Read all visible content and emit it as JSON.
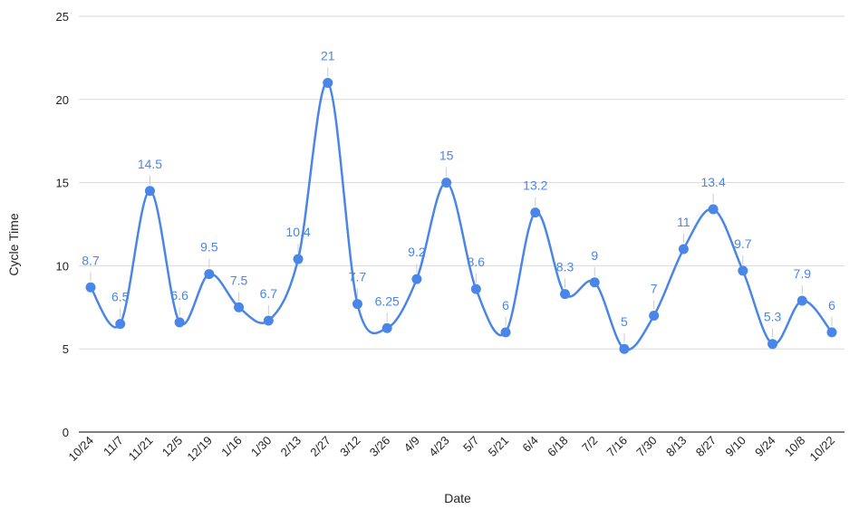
{
  "chart_data": {
    "type": "line",
    "smooth": true,
    "xlabel": "Date",
    "ylabel": "Cycle Time",
    "ylim": [
      0,
      25
    ],
    "yticks": [
      "0",
      "5",
      "10",
      "15",
      "20",
      "25"
    ],
    "grid": true,
    "legend": "none",
    "line_color": "#4a86e8",
    "label_color": "#4a86e8",
    "categories": [
      "10/24",
      "11/7",
      "11/21",
      "12/5",
      "12/19",
      "1/16",
      "1/30",
      "2/13",
      "2/27",
      "3/12",
      "3/26",
      "4/9",
      "4/23",
      "5/7",
      "5/21",
      "6/4",
      "6/18",
      "7/2",
      "7/16",
      "7/30",
      "8/13",
      "8/27",
      "9/10",
      "9/24",
      "10/8",
      "10/22"
    ],
    "series": [
      {
        "values": [
          8.7,
          6.5,
          14.5,
          6.6,
          9.5,
          7.5,
          6.7,
          10.4,
          21,
          7.7,
          6.25,
          9.2,
          15,
          8.6,
          6,
          13.2,
          8.3,
          9,
          5,
          7,
          11,
          13.4,
          9.7,
          5.3,
          7.9,
          6
        ],
        "labels": [
          "8.7",
          "6.5",
          "14.5",
          "6.6",
          "9.5",
          "7.5",
          "6.7",
          "10.4",
          "21",
          "7.7",
          "6.25",
          "9.2",
          "15",
          "8.6",
          "6",
          "13.2",
          "8.3",
          "9",
          "5",
          "7",
          "11",
          "13.4",
          "9.7",
          "5.3",
          "7.9",
          "6"
        ]
      }
    ]
  }
}
